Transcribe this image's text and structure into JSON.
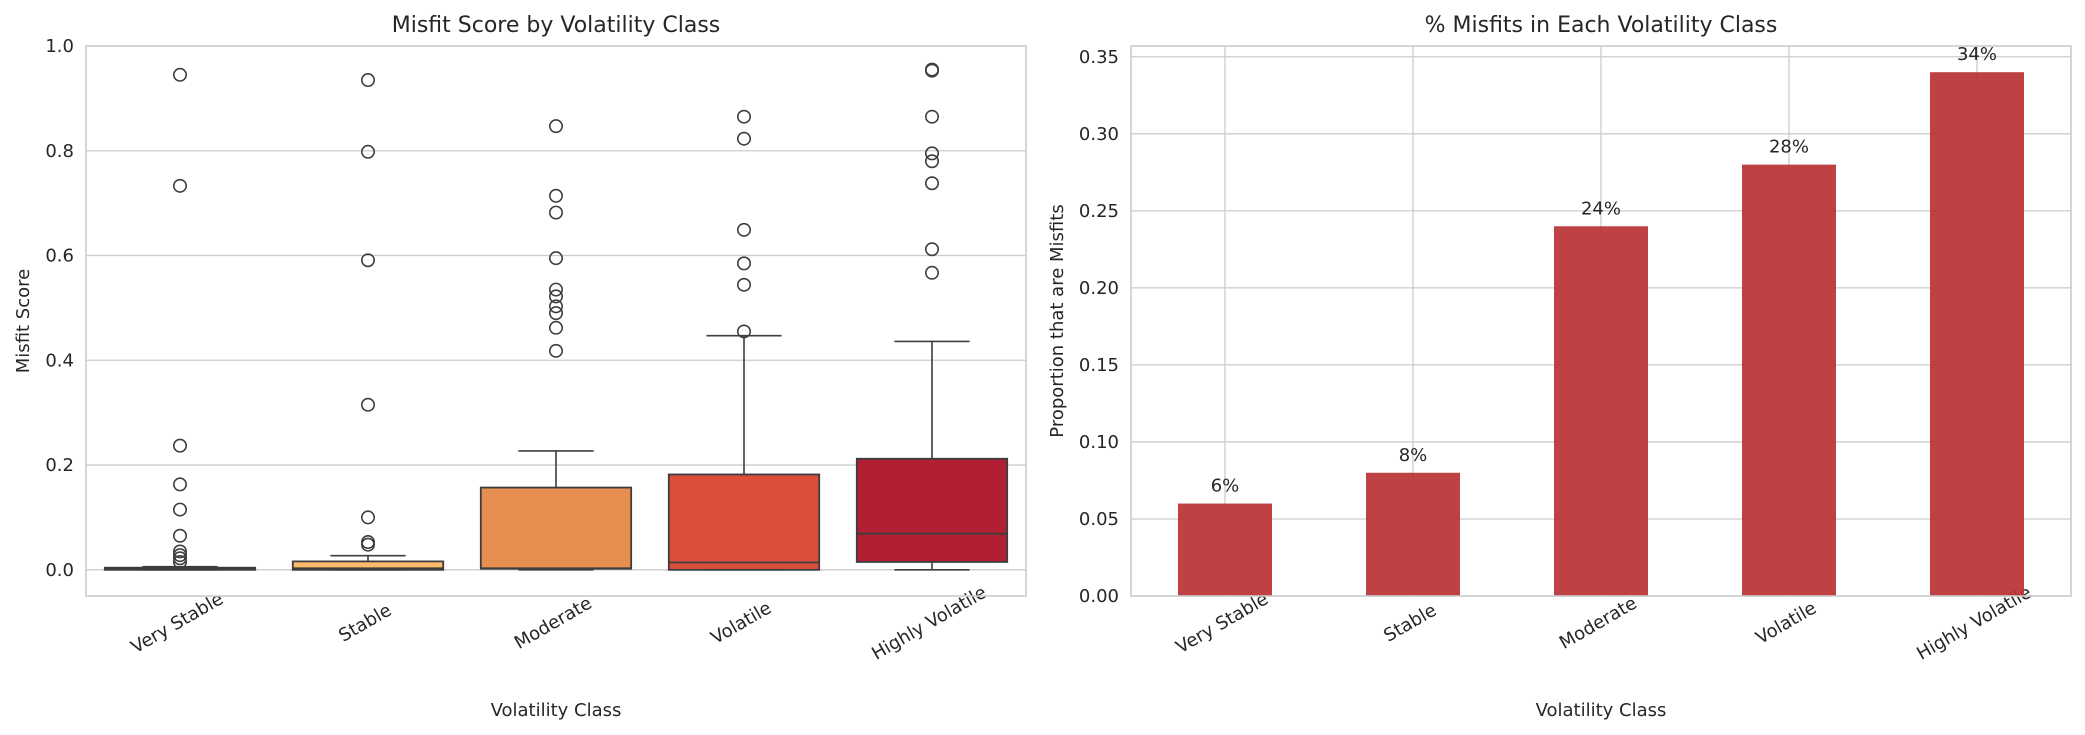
{
  "chart_data": [
    {
      "type": "box",
      "title": "Misfit Score by Volatility Class",
      "xlabel": "Volatility Class",
      "ylabel": "Misfit Score",
      "ylim": [
        -0.05,
        1.0
      ],
      "yticks": [
        "0.0",
        "0.2",
        "0.4",
        "0.6",
        "0.8",
        "1.0"
      ],
      "grid": true,
      "categories": [
        "Very Stable",
        "Stable",
        "Moderate",
        "Volatile",
        "Highly Volatile"
      ],
      "boxes": [
        {
          "category": "Very Stable",
          "color": "#fde9a5",
          "whislo": 0.0,
          "q1": 0.0,
          "med": 0.002,
          "q3": 0.004,
          "whishi": 0.006,
          "fliers": [
            0.945,
            0.733,
            0.237,
            0.163,
            0.115,
            0.065,
            0.035,
            0.028,
            0.022,
            0.015
          ]
        },
        {
          "category": "Stable",
          "color": "#fdbb6a",
          "whislo": 0.0,
          "q1": 0.0,
          "med": 0.003,
          "q3": 0.016,
          "whishi": 0.027,
          "fliers": [
            0.935,
            0.798,
            0.591,
            0.315,
            0.1,
            0.053,
            0.048
          ]
        },
        {
          "category": "Moderate",
          "color": "#e58e4f",
          "whislo": 0.0,
          "q1": 0.002,
          "med": 0.003,
          "q3": 0.157,
          "whishi": 0.227,
          "fliers": [
            0.847,
            0.714,
            0.682,
            0.595,
            0.535,
            0.522,
            0.503,
            0.49,
            0.462,
            0.418
          ]
        },
        {
          "category": "Volatile",
          "color": "#dc4f3b",
          "whislo": 0.0,
          "q1": 0.0,
          "med": 0.014,
          "q3": 0.182,
          "whishi": 0.447,
          "fliers": [
            0.865,
            0.823,
            0.649,
            0.585,
            0.544,
            0.455
          ]
        },
        {
          "category": "Highly Volatile",
          "color": "#b21f35",
          "whislo": 0.0,
          "q1": 0.015,
          "med": 0.069,
          "q3": 0.212,
          "whishi": 0.436,
          "fliers": [
            0.955,
            0.953,
            0.865,
            0.795,
            0.78,
            0.738,
            0.612,
            0.567
          ]
        }
      ]
    },
    {
      "type": "bar",
      "title": "% Misfits in Each Volatility Class",
      "xlabel": "Volatility Class",
      "ylabel": "Proportion that are Misfits",
      "ylim": [
        0.0,
        0.357
      ],
      "yticks": [
        "0.00",
        "0.05",
        "0.10",
        "0.15",
        "0.20",
        "0.25",
        "0.30",
        "0.35"
      ],
      "grid": true,
      "color": "#b83234",
      "categories": [
        "Very Stable",
        "Stable",
        "Moderate",
        "Volatile",
        "Highly Volatile"
      ],
      "values": [
        0.06,
        0.08,
        0.24,
        0.28,
        0.34
      ],
      "labels": [
        "6%",
        "8%",
        "24%",
        "28%",
        "34%"
      ]
    }
  ]
}
